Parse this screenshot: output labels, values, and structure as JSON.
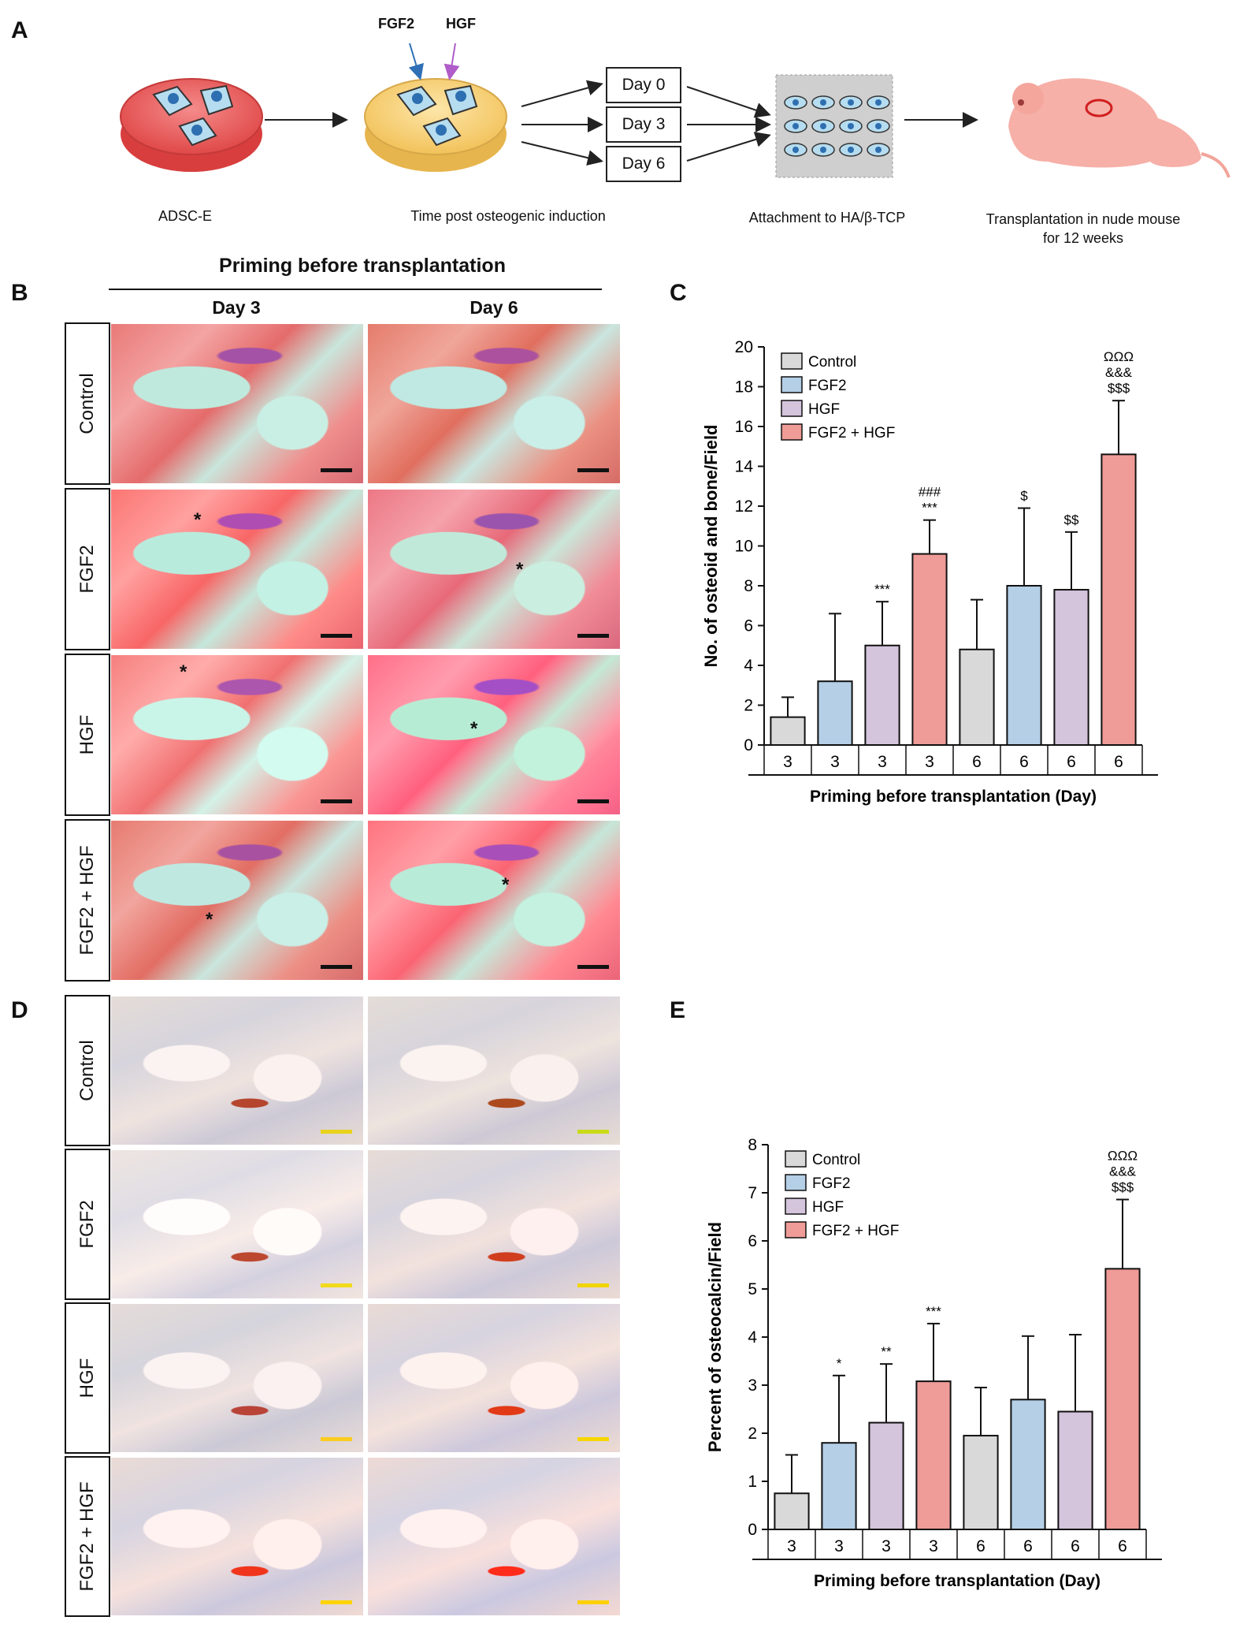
{
  "panels": {
    "A": "A",
    "B": "B",
    "C": "C",
    "D": "D",
    "E": "E"
  },
  "schematic": {
    "fgf2": "FGF2",
    "hgf": "HGF",
    "days": [
      "Day 0",
      "Day 3",
      "Day 6"
    ],
    "captions": {
      "adsc": "ADSC-E",
      "time": "Time post osteogenic induction",
      "attach": "Attachment to HA/β-TCP",
      "transplant": "Transplantation in nude mouse\nfor 12 weeks"
    }
  },
  "histology": {
    "header": "Priming before transplantation",
    "cols": [
      "Day 3",
      "Day 6"
    ],
    "rows_B": [
      "Control",
      "FGF2",
      "HGF",
      "FGF2 + HGF"
    ],
    "rows_D": [
      "Control",
      "FGF2",
      "HGF",
      "FGF2 + HGF"
    ],
    "asterisk": "*",
    "colors": {
      "scale_B": "#111111",
      "scale_D": "#e8d21a"
    }
  },
  "chart_data": [
    {
      "type": "bar",
      "panel": "C",
      "title": "",
      "xlabel": "Priming before transplantation (Day)",
      "ylabel": "No. of osteoid and bone/Field",
      "ylim": [
        0,
        20
      ],
      "yticks": [
        0,
        2,
        4,
        6,
        8,
        10,
        12,
        14,
        16,
        18,
        20
      ],
      "categories": [
        "3",
        "3",
        "3",
        "3",
        "6",
        "6",
        "6",
        "6"
      ],
      "groups": [
        "Control",
        "FGF2",
        "HGF",
        "FGF2 + HGF",
        "Control",
        "FGF2",
        "HGF",
        "FGF2 + HGF"
      ],
      "values": [
        1.4,
        3.2,
        5.0,
        9.6,
        4.8,
        8.0,
        7.8,
        14.6
      ],
      "errors": [
        1.0,
        3.4,
        2.2,
        1.7,
        2.5,
        3.9,
        2.9,
        2.7
      ],
      "annotations": [
        [],
        [],
        [
          "***"
        ],
        [
          "###",
          "***"
        ],
        [],
        [
          "$"
        ],
        [
          "$$"
        ],
        [
          "ΩΩΩ",
          "&&&",
          "$$$"
        ]
      ],
      "legend": [
        "Control",
        "FGF2",
        "HGF",
        "FGF2 + HGF"
      ],
      "legend_position": "top-left",
      "grid": false
    },
    {
      "type": "bar",
      "panel": "E",
      "title": "",
      "xlabel": "Priming before transplantation (Day)",
      "ylabel": "Percent of osteocalcin/Field",
      "ylim": [
        0,
        8
      ],
      "yticks": [
        0,
        1,
        2,
        3,
        4,
        5,
        6,
        7,
        8
      ],
      "categories": [
        "3",
        "3",
        "3",
        "3",
        "6",
        "6",
        "6",
        "6"
      ],
      "groups": [
        "Control",
        "FGF2",
        "HGF",
        "FGF2 + HGF",
        "Control",
        "FGF2",
        "HGF",
        "FGF2 + HGF"
      ],
      "values": [
        0.75,
        1.8,
        2.22,
        3.08,
        1.95,
        2.7,
        2.45,
        5.42
      ],
      "errors": [
        0.8,
        1.4,
        1.22,
        1.2,
        1.0,
        1.32,
        1.6,
        1.44
      ],
      "annotations": [
        [],
        [
          "*"
        ],
        [
          "**"
        ],
        [
          "***"
        ],
        [],
        [],
        [],
        [
          "ΩΩΩ",
          "&&&",
          "$$$"
        ]
      ],
      "legend": [
        "Control",
        "FGF2",
        "HGF",
        "FGF2 + HGF"
      ],
      "legend_position": "top-left",
      "grid": false
    }
  ],
  "colors": {
    "Control": "#d9d9d9",
    "FGF2": "#b4cfe6",
    "HGF": "#d4c4dc",
    "FGF2 + HGF": "#ef9b97",
    "axis": "#111111"
  }
}
